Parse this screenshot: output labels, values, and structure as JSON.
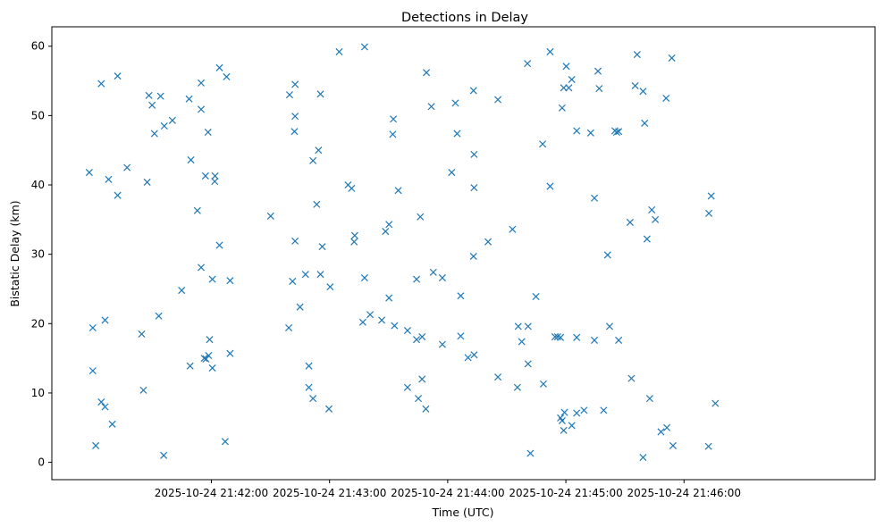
{
  "chart_data": {
    "type": "scatter",
    "title": "Detections in Delay",
    "xlabel": "Time (UTC)",
    "ylabel": "Bistatic Delay (km)",
    "marker": "x",
    "color": "#1f77b4",
    "xlim": [
      -21.0,
      397.0
    ],
    "ylim": [
      -2.5,
      62.8
    ],
    "x_units": "seconds after 2025-10-24 21:41:00",
    "xticks": [
      {
        "value": 60,
        "label": "2025-10-24 21:42:00"
      },
      {
        "value": 120,
        "label": "2025-10-24 21:43:00"
      },
      {
        "value": 180,
        "label": "2025-10-24 21:44:00"
      },
      {
        "value": 240,
        "label": "2025-10-24 21:45:00"
      },
      {
        "value": 300,
        "label": "2025-10-24 21:46:00"
      }
    ],
    "yticks": [
      {
        "value": 0,
        "label": "0"
      },
      {
        "value": 10,
        "label": "10"
      },
      {
        "value": 20,
        "label": "20"
      },
      {
        "value": 30,
        "label": "30"
      },
      {
        "value": 40,
        "label": "40"
      },
      {
        "value": 50,
        "label": "50"
      },
      {
        "value": 60,
        "label": "60"
      }
    ],
    "points": [
      [
        -2.0,
        41.8
      ],
      [
        -0.2,
        19.4
      ],
      [
        -0.2,
        13.2
      ],
      [
        1.3,
        2.4
      ],
      [
        4.1,
        54.6
      ],
      [
        4.1,
        8.7
      ],
      [
        6.0,
        20.5
      ],
      [
        6.0,
        8.0
      ],
      [
        7.8,
        40.8
      ],
      [
        9.7,
        5.5
      ],
      [
        12.4,
        55.7
      ],
      [
        12.4,
        38.5
      ],
      [
        17.2,
        42.5
      ],
      [
        24.6,
        18.5
      ],
      [
        25.5,
        10.4
      ],
      [
        27.4,
        40.4
      ],
      [
        28.3,
        52.9
      ],
      [
        29.9,
        51.5
      ],
      [
        31.1,
        47.4
      ],
      [
        33.3,
        21.1
      ],
      [
        34.2,
        52.8
      ],
      [
        35.8,
        1.0
      ],
      [
        36.1,
        48.5
      ],
      [
        40.2,
        49.3
      ],
      [
        44.9,
        24.8
      ],
      [
        48.7,
        52.4
      ],
      [
        49.2,
        13.9
      ],
      [
        49.6,
        43.6
      ],
      [
        52.9,
        36.3
      ],
      [
        54.8,
        54.7
      ],
      [
        54.8,
        50.9
      ],
      [
        54.8,
        28.1
      ],
      [
        56.4,
        15.0
      ],
      [
        57.0,
        41.3
      ],
      [
        57.3,
        14.9
      ],
      [
        58.3,
        47.6
      ],
      [
        58.6,
        15.4
      ],
      [
        59.1,
        17.7
      ],
      [
        60.5,
        26.4
      ],
      [
        60.5,
        13.6
      ],
      [
        61.7,
        40.5
      ],
      [
        61.9,
        41.3
      ],
      [
        64.1,
        56.9
      ],
      [
        64.1,
        31.3
      ],
      [
        67.0,
        3.0
      ],
      [
        67.7,
        55.6
      ],
      [
        69.5,
        26.2
      ],
      [
        69.5,
        15.7
      ],
      [
        90.1,
        35.5
      ],
      [
        99.3,
        19.4
      ],
      [
        99.7,
        53.0
      ],
      [
        101.2,
        26.1
      ],
      [
        102.2,
        47.7
      ],
      [
        102.5,
        54.5
      ],
      [
        102.5,
        49.9
      ],
      [
        102.5,
        31.9
      ],
      [
        105.0,
        22.4
      ],
      [
        107.8,
        27.1
      ],
      [
        109.5,
        13.9
      ],
      [
        109.5,
        10.8
      ],
      [
        111.6,
        43.5
      ],
      [
        111.6,
        9.2
      ],
      [
        113.5,
        37.2
      ],
      [
        114.4,
        45.0
      ],
      [
        115.4,
        53.1
      ],
      [
        115.4,
        27.1
      ],
      [
        116.3,
        31.1
      ],
      [
        119.7,
        7.7
      ],
      [
        120.3,
        25.3
      ],
      [
        124.9,
        59.2
      ],
      [
        129.4,
        40.0
      ],
      [
        131.2,
        39.5
      ],
      [
        132.5,
        31.8
      ],
      [
        132.8,
        32.7
      ],
      [
        136.9,
        20.2
      ],
      [
        137.8,
        26.6
      ],
      [
        137.8,
        59.9
      ],
      [
        140.6,
        21.3
      ],
      [
        146.5,
        20.5
      ],
      [
        148.4,
        33.3
      ],
      [
        150.2,
        23.7
      ],
      [
        150.2,
        34.3
      ],
      [
        152.1,
        47.3
      ],
      [
        152.4,
        49.5
      ],
      [
        153.0,
        19.7
      ],
      [
        154.9,
        39.2
      ],
      [
        159.6,
        10.8
      ],
      [
        159.6,
        19.0
      ],
      [
        164.2,
        26.4
      ],
      [
        164.2,
        17.7
      ],
      [
        165.1,
        9.2
      ],
      [
        166.1,
        35.4
      ],
      [
        167.0,
        12.0
      ],
      [
        167.0,
        18.1
      ],
      [
        168.9,
        7.7
      ],
      [
        169.2,
        56.2
      ],
      [
        171.7,
        51.3
      ],
      [
        172.7,
        27.4
      ],
      [
        177.3,
        26.6
      ],
      [
        177.3,
        17.0
      ],
      [
        182.0,
        41.8
      ],
      [
        183.9,
        51.8
      ],
      [
        184.8,
        47.4
      ],
      [
        186.6,
        24.0
      ],
      [
        186.6,
        18.2
      ],
      [
        190.3,
        15.1
      ],
      [
        193.1,
        29.7
      ],
      [
        193.1,
        53.6
      ],
      [
        193.4,
        44.4
      ],
      [
        193.4,
        39.6
      ],
      [
        193.4,
        15.5
      ],
      [
        200.5,
        31.8
      ],
      [
        205.5,
        52.3
      ],
      [
        205.5,
        12.3
      ],
      [
        212.9,
        33.6
      ],
      [
        215.4,
        10.8
      ],
      [
        215.8,
        19.6
      ],
      [
        217.6,
        17.4
      ],
      [
        220.5,
        57.5
      ],
      [
        220.8,
        19.6
      ],
      [
        220.8,
        14.2
      ],
      [
        222.0,
        1.3
      ],
      [
        224.8,
        23.9
      ],
      [
        228.2,
        45.9
      ],
      [
        228.6,
        11.3
      ],
      [
        232.0,
        59.2
      ],
      [
        232.0,
        39.8
      ],
      [
        234.5,
        18.1
      ],
      [
        235.8,
        18.1
      ],
      [
        237.3,
        18.0
      ],
      [
        237.3,
        6.4
      ],
      [
        238.1,
        6.0
      ],
      [
        238.1,
        51.1
      ],
      [
        238.9,
        54.0
      ],
      [
        238.9,
        4.6
      ],
      [
        239.3,
        7.2
      ],
      [
        240.2,
        57.1
      ],
      [
        241.5,
        54.0
      ],
      [
        243.0,
        55.2
      ],
      [
        243.0,
        5.3
      ],
      [
        245.5,
        47.8
      ],
      [
        245.5,
        18.0
      ],
      [
        245.5,
        7.1
      ],
      [
        249.2,
        7.5
      ],
      [
        252.6,
        47.5
      ],
      [
        254.5,
        38.1
      ],
      [
        254.5,
        17.6
      ],
      [
        256.3,
        56.4
      ],
      [
        256.9,
        53.9
      ],
      [
        259.2,
        7.5
      ],
      [
        261.2,
        29.9
      ],
      [
        262.2,
        19.6
      ],
      [
        264.9,
        47.8
      ],
      [
        265.8,
        47.6
      ],
      [
        266.8,
        47.7
      ],
      [
        266.8,
        17.6
      ],
      [
        272.6,
        34.6
      ],
      [
        273.3,
        12.1
      ],
      [
        275.2,
        54.3
      ],
      [
        276.2,
        58.8
      ],
      [
        279.2,
        53.5
      ],
      [
        279.2,
        0.7
      ],
      [
        280.0,
        48.9
      ],
      [
        281.2,
        32.2
      ],
      [
        282.6,
        9.2
      ],
      [
        283.6,
        36.4
      ],
      [
        285.4,
        35.0
      ],
      [
        288.3,
        4.4
      ],
      [
        290.9,
        52.5
      ],
      [
        291.3,
        5.0
      ],
      [
        293.8,
        58.3
      ],
      [
        294.4,
        2.4
      ],
      [
        312.4,
        2.3
      ],
      [
        312.6,
        35.9
      ],
      [
        313.8,
        38.4
      ],
      [
        315.9,
        8.5
      ]
    ]
  }
}
